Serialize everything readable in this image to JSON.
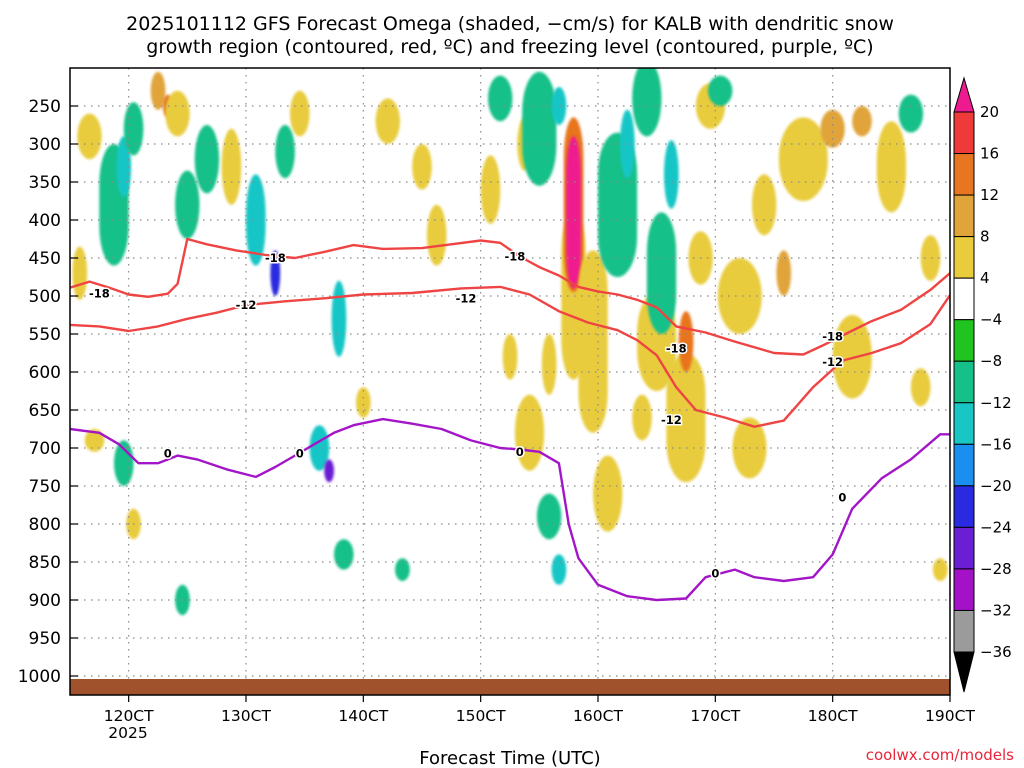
{
  "chart_data": {
    "type": "heatmap",
    "title_line1": "2025101112 GFS Forecast Omega (shaded, −cm/s) for KALB with dendritic snow",
    "title_line2": "growth region (contoured, red, ºC) and freezing level (contoured, purple, ºC)",
    "xlabel": "Forecast Time (UTC)",
    "ylabel": "",
    "watermark": "coolwx.com/models",
    "y_axis": {
      "unit": "hPa",
      "ticks": [
        250,
        300,
        350,
        400,
        450,
        500,
        550,
        600,
        650,
        700,
        750,
        800,
        850,
        900,
        950,
        1000
      ],
      "tick_labels": [
        "250",
        "300",
        "350",
        "400",
        "450",
        "500",
        "550",
        "600",
        "650",
        "700",
        "750",
        "800",
        "850",
        "900",
        "950",
        "1000"
      ],
      "range": [
        200,
        1025
      ]
    },
    "x_axis": {
      "unit": "hours after 2025-10-11 12Z",
      "range": [
        0,
        180
      ],
      "ticks": [
        12,
        36,
        60,
        84,
        108,
        132,
        156,
        180
      ],
      "tick_labels": [
        "120CT",
        "130CT",
        "140CT",
        "150CT",
        "160CT",
        "170CT",
        "180CT",
        "190CT"
      ],
      "year_label": "2025"
    },
    "colorbar": {
      "labels": [
        "20",
        "16",
        "12",
        "8",
        "4",
        "−4",
        "−8",
        "−12",
        "−16",
        "−20",
        "−24",
        "−28",
        "−32",
        "−36"
      ],
      "colors": [
        "#ee1a8f",
        "#ef3a3a",
        "#e8751f",
        "#e0a43a",
        "#e8cc3c",
        "#ffffff",
        "#1fc41f",
        "#16c089",
        "#19c6c6",
        "#1a8ff0",
        "#2a2ae0",
        "#6a1fd4",
        "#a312c7",
        "#9b9b9b",
        "#000000"
      ]
    },
    "omega_blobs": [
      {
        "t": 2,
        "p": 470,
        "dt": 3,
        "dp": 70,
        "v": 5
      },
      {
        "t": 4,
        "p": 290,
        "dt": 5,
        "dp": 60,
        "v": 5
      },
      {
        "t": 5,
        "p": 690,
        "dt": 4,
        "dp": 30,
        "v": 5
      },
      {
        "t": 9,
        "p": 380,
        "dt": 6,
        "dp": 160,
        "v": -9
      },
      {
        "t": 11,
        "p": 330,
        "dt": 3,
        "dp": 80,
        "v": -15
      },
      {
        "t": 13,
        "p": 280,
        "dt": 4,
        "dp": 70,
        "v": -9
      },
      {
        "t": 11,
        "p": 720,
        "dt": 4,
        "dp": 60,
        "v": -10
      },
      {
        "t": 13,
        "p": 800,
        "dt": 3,
        "dp": 40,
        "v": 5
      },
      {
        "t": 18,
        "p": 230,
        "dt": 3,
        "dp": 50,
        "v": 10
      },
      {
        "t": 20,
        "p": 250,
        "dt": 2,
        "dp": 30,
        "v": 13
      },
      {
        "t": 22,
        "p": 260,
        "dt": 5,
        "dp": 60,
        "v": 5
      },
      {
        "t": 24,
        "p": 380,
        "dt": 5,
        "dp": 90,
        "v": -9
      },
      {
        "t": 23,
        "p": 900,
        "dt": 3,
        "dp": 40,
        "v": -9
      },
      {
        "t": 28,
        "p": 320,
        "dt": 5,
        "dp": 90,
        "v": -9
      },
      {
        "t": 33,
        "p": 330,
        "dt": 4,
        "dp": 100,
        "v": 5
      },
      {
        "t": 38,
        "p": 400,
        "dt": 4,
        "dp": 120,
        "v": -12
      },
      {
        "t": 42,
        "p": 470,
        "dt": 2,
        "dp": 60,
        "v": -21
      },
      {
        "t": 44,
        "p": 310,
        "dt": 4,
        "dp": 70,
        "v": -9
      },
      {
        "t": 47,
        "p": 260,
        "dt": 4,
        "dp": 60,
        "v": 5
      },
      {
        "t": 51,
        "p": 700,
        "dt": 4,
        "dp": 60,
        "v": -12
      },
      {
        "t": 53,
        "p": 730,
        "dt": 2,
        "dp": 30,
        "v": -26
      },
      {
        "t": 55,
        "p": 530,
        "dt": 3,
        "dp": 100,
        "v": -14
      },
      {
        "t": 56,
        "p": 840,
        "dt": 4,
        "dp": 40,
        "v": -9
      },
      {
        "t": 60,
        "p": 640,
        "dt": 3,
        "dp": 40,
        "v": 5
      },
      {
        "t": 65,
        "p": 270,
        "dt": 5,
        "dp": 60,
        "v": 5
      },
      {
        "t": 68,
        "p": 860,
        "dt": 3,
        "dp": 30,
        "v": -9
      },
      {
        "t": 72,
        "p": 330,
        "dt": 4,
        "dp": 60,
        "v": 5
      },
      {
        "t": 75,
        "p": 420,
        "dt": 4,
        "dp": 80,
        "v": 5
      },
      {
        "t": 86,
        "p": 360,
        "dt": 4,
        "dp": 90,
        "v": 5
      },
      {
        "t": 88,
        "p": 240,
        "dt": 5,
        "dp": 60,
        "v": -9
      },
      {
        "t": 90,
        "p": 580,
        "dt": 3,
        "dp": 60,
        "v": 5
      },
      {
        "t": 93,
        "p": 300,
        "dt": 3,
        "dp": 70,
        "v": 5
      },
      {
        "t": 94,
        "p": 680,
        "dt": 6,
        "dp": 100,
        "v": 6
      },
      {
        "t": 96,
        "p": 280,
        "dt": 7,
        "dp": 150,
        "v": -9
      },
      {
        "t": 100,
        "p": 250,
        "dt": 3,
        "dp": 50,
        "v": -15
      },
      {
        "t": 98,
        "p": 590,
        "dt": 3,
        "dp": 80,
        "v": 6
      },
      {
        "t": 98,
        "p": 790,
        "dt": 5,
        "dp": 60,
        "v": -10
      },
      {
        "t": 100,
        "p": 860,
        "dt": 3,
        "dp": 40,
        "v": -14
      },
      {
        "t": 103,
        "p": 500,
        "dt": 5,
        "dp": 220,
        "v": 6
      },
      {
        "t": 103,
        "p": 380,
        "dt": 4,
        "dp": 230,
        "v": 15
      },
      {
        "t": 103,
        "p": 390,
        "dt": 3,
        "dp": 200,
        "v": 21
      },
      {
        "t": 107,
        "p": 560,
        "dt": 6,
        "dp": 240,
        "v": 6
      },
      {
        "t": 110,
        "p": 760,
        "dt": 6,
        "dp": 100,
        "v": 6
      },
      {
        "t": 112,
        "p": 380,
        "dt": 8,
        "dp": 190,
        "v": -9
      },
      {
        "t": 114,
        "p": 300,
        "dt": 3,
        "dp": 90,
        "v": -14
      },
      {
        "t": 117,
        "p": 660,
        "dt": 4,
        "dp": 60,
        "v": 6
      },
      {
        "t": 118,
        "p": 240,
        "dt": 6,
        "dp": 100,
        "v": -9
      },
      {
        "t": 120,
        "p": 560,
        "dt": 8,
        "dp": 130,
        "v": 6
      },
      {
        "t": 121,
        "p": 470,
        "dt": 6,
        "dp": 160,
        "v": -9
      },
      {
        "t": 123,
        "p": 340,
        "dt": 3,
        "dp": 90,
        "v": -14
      },
      {
        "t": 126,
        "p": 660,
        "dt": 8,
        "dp": 170,
        "v": 6
      },
      {
        "t": 126,
        "p": 560,
        "dt": 3,
        "dp": 80,
        "v": 13
      },
      {
        "t": 129,
        "p": 450,
        "dt": 5,
        "dp": 70,
        "v": 6
      },
      {
        "t": 131,
        "p": 250,
        "dt": 6,
        "dp": 60,
        "v": 5
      },
      {
        "t": 133,
        "p": 230,
        "dt": 5,
        "dp": 40,
        "v": -9
      },
      {
        "t": 137,
        "p": 500,
        "dt": 9,
        "dp": 100,
        "v": 5
      },
      {
        "t": 139,
        "p": 700,
        "dt": 7,
        "dp": 80,
        "v": 5
      },
      {
        "t": 142,
        "p": 380,
        "dt": 5,
        "dp": 80,
        "v": 5
      },
      {
        "t": 146,
        "p": 470,
        "dt": 3,
        "dp": 60,
        "v": 9
      },
      {
        "t": 150,
        "p": 320,
        "dt": 10,
        "dp": 110,
        "v": 5
      },
      {
        "t": 156,
        "p": 280,
        "dt": 5,
        "dp": 50,
        "v": 9
      },
      {
        "t": 160,
        "p": 580,
        "dt": 8,
        "dp": 110,
        "v": 5
      },
      {
        "t": 162,
        "p": 270,
        "dt": 4,
        "dp": 40,
        "v": 9
      },
      {
        "t": 168,
        "p": 330,
        "dt": 6,
        "dp": 120,
        "v": 5
      },
      {
        "t": 172,
        "p": 260,
        "dt": 5,
        "dp": 50,
        "v": -9
      },
      {
        "t": 176,
        "p": 450,
        "dt": 4,
        "dp": 60,
        "v": 5
      },
      {
        "t": 174,
        "p": 620,
        "dt": 4,
        "dp": 50,
        "v": 5
      },
      {
        "t": 178,
        "p": 860,
        "dt": 3,
        "dp": 30,
        "v": 5
      }
    ],
    "contours": [
      {
        "name": "-18C",
        "color": "#ef4444",
        "label": "-18",
        "points": [
          [
            0,
            489
          ],
          [
            4,
            481
          ],
          [
            8,
            489
          ],
          [
            12,
            498
          ],
          [
            16,
            501
          ],
          [
            20,
            497
          ],
          [
            22,
            484
          ],
          [
            24,
            425
          ],
          [
            28,
            432
          ],
          [
            34,
            440
          ],
          [
            40,
            446
          ],
          [
            46,
            450
          ],
          [
            52,
            442
          ],
          [
            58,
            433
          ],
          [
            64,
            438
          ],
          [
            72,
            437
          ],
          [
            78,
            432
          ],
          [
            84,
            427
          ],
          [
            88,
            430
          ],
          [
            92,
            448
          ],
          [
            96,
            462
          ],
          [
            100,
            473
          ],
          [
            104,
            488
          ],
          [
            108,
            494
          ],
          [
            112,
            498
          ],
          [
            116,
            505
          ],
          [
            120,
            515
          ],
          [
            124,
            540
          ],
          [
            130,
            548
          ],
          [
            136,
            560
          ],
          [
            144,
            575
          ],
          [
            150,
            577
          ],
          [
            154,
            565
          ],
          [
            158,
            552
          ],
          [
            164,
            533
          ],
          [
            170,
            518
          ],
          [
            176,
            492
          ],
          [
            180,
            470
          ]
        ]
      },
      {
        "name": "-12C",
        "color": "#ef4444",
        "label": "-12",
        "points": [
          [
            0,
            538
          ],
          [
            6,
            540
          ],
          [
            12,
            546
          ],
          [
            18,
            540
          ],
          [
            24,
            530
          ],
          [
            30,
            522
          ],
          [
            36,
            512
          ],
          [
            44,
            507
          ],
          [
            52,
            503
          ],
          [
            60,
            498
          ],
          [
            70,
            496
          ],
          [
            80,
            490
          ],
          [
            88,
            488
          ],
          [
            94,
            498
          ],
          [
            100,
            520
          ],
          [
            106,
            535
          ],
          [
            112,
            545
          ],
          [
            116,
            558
          ],
          [
            120,
            578
          ],
          [
            124,
            620
          ],
          [
            128,
            650
          ],
          [
            134,
            660
          ],
          [
            140,
            672
          ],
          [
            146,
            664
          ],
          [
            152,
            620
          ],
          [
            158,
            585
          ],
          [
            164,
            575
          ],
          [
            170,
            562
          ],
          [
            176,
            537
          ],
          [
            180,
            499
          ]
        ]
      },
      {
        "name": "0C",
        "color": "#a316c7",
        "label": "0",
        "points": [
          [
            0,
            675
          ],
          [
            6,
            680
          ],
          [
            10,
            695
          ],
          [
            14,
            720
          ],
          [
            18,
            720
          ],
          [
            22,
            710
          ],
          [
            26,
            715
          ],
          [
            32,
            728
          ],
          [
            38,
            738
          ],
          [
            42,
            725
          ],
          [
            46,
            710
          ],
          [
            50,
            695
          ],
          [
            54,
            680
          ],
          [
            58,
            670
          ],
          [
            64,
            662
          ],
          [
            70,
            668
          ],
          [
            76,
            675
          ],
          [
            82,
            690
          ],
          [
            88,
            700
          ],
          [
            92,
            702
          ],
          [
            96,
            705
          ],
          [
            100,
            720
          ],
          [
            102,
            800
          ],
          [
            104,
            845
          ],
          [
            108,
            880
          ],
          [
            114,
            895
          ],
          [
            120,
            900
          ],
          [
            126,
            898
          ],
          [
            130,
            870
          ],
          [
            136,
            860
          ],
          [
            140,
            870
          ],
          [
            146,
            875
          ],
          [
            152,
            870
          ],
          [
            156,
            840
          ],
          [
            160,
            780
          ],
          [
            166,
            740
          ],
          [
            172,
            715
          ],
          [
            178,
            682
          ],
          [
            180,
            682
          ]
        ]
      }
    ],
    "contour_labels": [
      {
        "text": "-18",
        "t": 6,
        "p": 497
      },
      {
        "text": "-18",
        "t": 42,
        "p": 450
      },
      {
        "text": "-18",
        "t": 91,
        "p": 448
      },
      {
        "text": "-18",
        "t": 124,
        "p": 569
      },
      {
        "text": "-18",
        "t": 156,
        "p": 553
      },
      {
        "text": "-12",
        "t": 36,
        "p": 512
      },
      {
        "text": "-12",
        "t": 81,
        "p": 503
      },
      {
        "text": "-12",
        "t": 123,
        "p": 663
      },
      {
        "text": "-12",
        "t": 156,
        "p": 587
      },
      {
        "text": "0",
        "t": 20,
        "p": 707
      },
      {
        "text": "0",
        "t": 47,
        "p": 707
      },
      {
        "text": "0",
        "t": 92,
        "p": 705
      },
      {
        "text": "0",
        "t": 132,
        "p": 865
      },
      {
        "text": "0",
        "t": 158,
        "p": 765
      }
    ]
  }
}
